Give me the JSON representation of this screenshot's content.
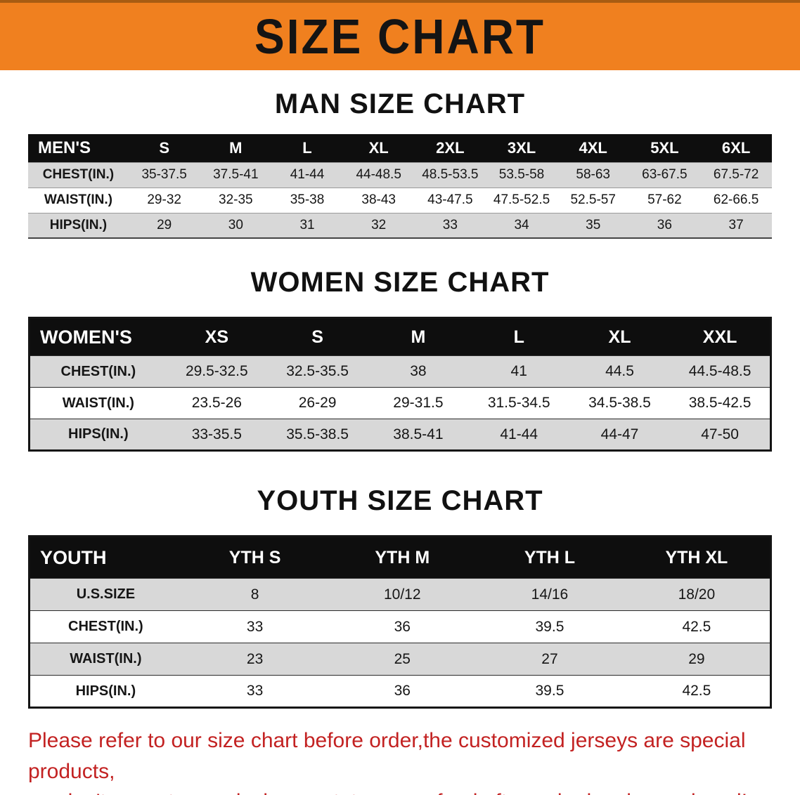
{
  "banner": {
    "title": "SIZE CHART"
  },
  "colors": {
    "banner_bg": "#f0801f",
    "table_header_bg": "#0e0e0e",
    "row_shade": "#d8d8d8",
    "disclaimer_text": "#c32222"
  },
  "sections": [
    {
      "heading": "MAN SIZE CHART",
      "table_title": "MEN'S",
      "header": [
        "MEN'S",
        "S",
        "M",
        "L",
        "XL",
        "2XL",
        "3XL",
        "4XL",
        "5XL",
        "6XL"
      ],
      "rows": [
        [
          "CHEST(IN.)",
          "35-37.5",
          "37.5-41",
          "41-44",
          "44-48.5",
          "48.5-53.5",
          "53.5-58",
          "58-63",
          "63-67.5",
          "67.5-72"
        ],
        [
          "WAIST(IN.)",
          "29-32",
          "32-35",
          "35-38",
          "38-43",
          "43-47.5",
          "47.5-52.5",
          "52.5-57",
          "57-62",
          "62-66.5"
        ],
        [
          "HIPS(IN.)",
          "29",
          "30",
          "31",
          "32",
          "33",
          "34",
          "35",
          "36",
          "37"
        ]
      ]
    },
    {
      "heading": "WOMEN SIZE CHART",
      "table_title": "WOMEN'S",
      "header": [
        "WOMEN'S",
        "XS",
        "S",
        "M",
        "L",
        "XL",
        "XXL"
      ],
      "rows": [
        [
          "CHEST(IN.)",
          "29.5-32.5",
          "32.5-35.5",
          "38",
          "41",
          "44.5",
          "44.5-48.5"
        ],
        [
          "WAIST(IN.)",
          "23.5-26",
          "26-29",
          "29-31.5",
          "31.5-34.5",
          "34.5-38.5",
          "38.5-42.5"
        ],
        [
          "HIPS(IN.)",
          "33-35.5",
          "35.5-38.5",
          "38.5-41",
          "41-44",
          "44-47",
          "47-50"
        ]
      ]
    },
    {
      "heading": "YOUTH SIZE CHART",
      "table_title": "YOUTH",
      "header": [
        "YOUTH",
        "YTH S",
        "YTH M",
        "YTH L",
        "YTH XL"
      ],
      "rows": [
        [
          "U.S.SIZE",
          "8",
          "10/12",
          "14/16",
          "18/20"
        ],
        [
          "CHEST(IN.)",
          "33",
          "36",
          "39.5",
          "42.5"
        ],
        [
          "WAIST(IN.)",
          "23",
          "25",
          "27",
          "29"
        ],
        [
          "HIPS(IN.)",
          "33",
          "36",
          "39.5",
          "42.5"
        ]
      ]
    }
  ],
  "footer": {
    "line1": "Please refer to our size chart before order,the customized jerseys are special products,",
    "line2": "we don't accept cancel, change, teturn or refund after order has been placed!"
  }
}
